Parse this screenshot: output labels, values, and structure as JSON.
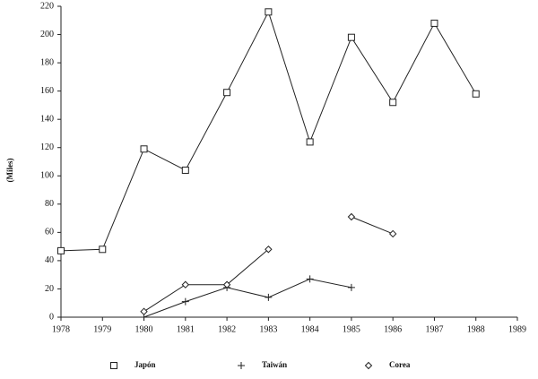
{
  "chart_data": {
    "type": "line",
    "y_label": "(Miles)",
    "x": [
      1978,
      1979,
      1980,
      1981,
      1982,
      1983,
      1984,
      1985,
      1986,
      1987,
      1988
    ],
    "series": [
      {
        "name": "Japón",
        "color": "#222222",
        "marker": "square",
        "values": [
          47,
          48,
          119,
          104,
          159,
          216,
          124,
          198,
          152,
          208,
          158
        ]
      },
      {
        "name": "Taiwán",
        "color": "#222222",
        "marker": "plus",
        "values": [
          null,
          null,
          0,
          11,
          21,
          14,
          27,
          21,
          null,
          null,
          null
        ]
      },
      {
        "name": "Corea",
        "color": "#222222",
        "marker": "diamond",
        "values": [
          null,
          null,
          4,
          23,
          23,
          48,
          null,
          71,
          59,
          null,
          null
        ]
      }
    ],
    "xlim": [
      1978,
      1989
    ],
    "xticks": [
      1978,
      1979,
      1980,
      1981,
      1982,
      1983,
      1984,
      1985,
      1986,
      1987,
      1988,
      1989
    ],
    "ylim": [
      0,
      220
    ],
    "yticks": [
      0,
      20,
      40,
      60,
      80,
      100,
      120,
      140,
      160,
      180,
      200,
      220
    ],
    "grid": false
  }
}
